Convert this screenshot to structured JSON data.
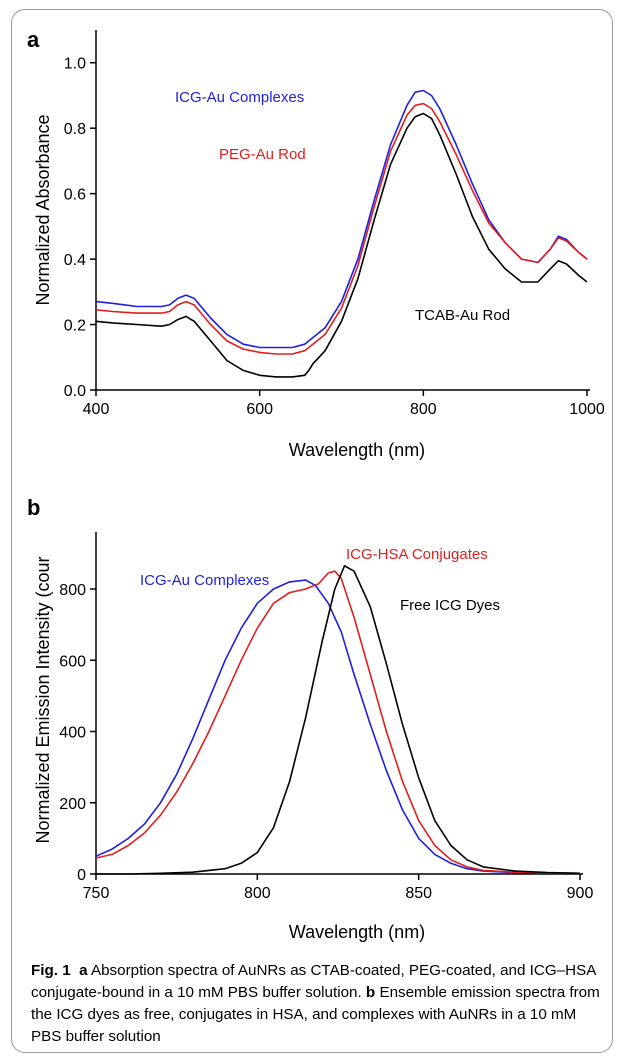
{
  "figure": {
    "panel_a_letter": "a",
    "panel_b_letter": "b",
    "caption_label": "Fig. 1",
    "caption_letter_a": "a",
    "caption_text_a": "Absorption spectra of AuNRs as CTAB-coated, PEG-coated, and ICG–HSA conjugate-bound in a 10 mM PBS buffer solution.",
    "caption_letter_b": "b",
    "caption_text_b": "Ensemble emission spectra from the ICG dyes as free, conjugates in HSA, and complexes with AuNRs in a 10 mM PBS buffer solution"
  },
  "chart_data": [
    {
      "type": "line",
      "xlabel": "Wavelength (nm)",
      "ylabel": "Normalized Absorbance",
      "xlim": [
        400,
        1000
      ],
      "ylim": [
        0,
        1.1
      ],
      "xticks": [
        400,
        600,
        800,
        1000
      ],
      "yticks": [
        0.0,
        0.2,
        0.4,
        0.6,
        0.8,
        1.0
      ],
      "xtick_labels": [
        "400",
        "600",
        "800",
        "1000"
      ],
      "ytick_labels": [
        "0.0",
        "0.2",
        "0.4",
        "0.6",
        "0.8",
        "1.0"
      ],
      "grid": false,
      "series": [
        {
          "name": "ICG-Au Complexes",
          "color": "#1f1fe0",
          "x": [
            400,
            420,
            450,
            480,
            490,
            500,
            510,
            520,
            540,
            560,
            580,
            600,
            620,
            640,
            655,
            660,
            665,
            680,
            700,
            720,
            740,
            760,
            780,
            790,
            800,
            810,
            820,
            840,
            860,
            880,
            900,
            920,
            940,
            955,
            965,
            975,
            990,
            1000
          ],
          "y": [
            0.27,
            0.265,
            0.255,
            0.255,
            0.26,
            0.28,
            0.29,
            0.28,
            0.22,
            0.17,
            0.14,
            0.13,
            0.13,
            0.13,
            0.14,
            0.15,
            0.16,
            0.19,
            0.27,
            0.4,
            0.58,
            0.75,
            0.87,
            0.91,
            0.915,
            0.9,
            0.86,
            0.75,
            0.63,
            0.52,
            0.45,
            0.4,
            0.39,
            0.43,
            0.47,
            0.46,
            0.42,
            0.4
          ]
        },
        {
          "name": "PEG-Au Rod",
          "color": "#e01f1f",
          "x": [
            400,
            420,
            450,
            480,
            490,
            500,
            510,
            520,
            540,
            560,
            580,
            600,
            620,
            640,
            655,
            660,
            665,
            680,
            700,
            720,
            740,
            760,
            780,
            790,
            800,
            810,
            820,
            840,
            860,
            880,
            900,
            920,
            940,
            955,
            965,
            975,
            990,
            1000
          ],
          "y": [
            0.245,
            0.24,
            0.235,
            0.235,
            0.24,
            0.26,
            0.27,
            0.26,
            0.2,
            0.15,
            0.125,
            0.115,
            0.11,
            0.11,
            0.12,
            0.13,
            0.14,
            0.17,
            0.25,
            0.38,
            0.56,
            0.73,
            0.84,
            0.87,
            0.875,
            0.86,
            0.82,
            0.72,
            0.61,
            0.51,
            0.45,
            0.4,
            0.39,
            0.43,
            0.465,
            0.455,
            0.42,
            0.4
          ]
        },
        {
          "name": "TCAB-Au Rod",
          "color": "#000000",
          "x": [
            400,
            420,
            450,
            480,
            490,
            500,
            510,
            520,
            540,
            560,
            580,
            600,
            620,
            640,
            655,
            660,
            665,
            680,
            700,
            720,
            740,
            760,
            780,
            790,
            800,
            810,
            820,
            840,
            860,
            880,
            900,
            920,
            940,
            955,
            965,
            975,
            990,
            1000
          ],
          "y": [
            0.21,
            0.205,
            0.2,
            0.195,
            0.2,
            0.215,
            0.225,
            0.21,
            0.15,
            0.09,
            0.06,
            0.045,
            0.04,
            0.04,
            0.045,
            0.06,
            0.08,
            0.12,
            0.21,
            0.34,
            0.52,
            0.69,
            0.8,
            0.835,
            0.845,
            0.83,
            0.78,
            0.66,
            0.53,
            0.43,
            0.37,
            0.33,
            0.33,
            0.37,
            0.395,
            0.385,
            0.35,
            0.33
          ]
        }
      ],
      "annotations": [
        "ICG-Au Complexes",
        "PEG-Au Rod",
        "TCAB-Au Rod"
      ]
    },
    {
      "type": "line",
      "xlabel": "Wavelength (nm)",
      "ylabel": "Normalized Emission Intensity (cour",
      "xlim": [
        750,
        900
      ],
      "ylim": [
        0,
        960
      ],
      "xticks": [
        750,
        800,
        850,
        900
      ],
      "yticks": [
        0,
        200,
        400,
        600,
        800
      ],
      "xtick_labels": [
        "750",
        "800",
        "850",
        "900"
      ],
      "ytick_labels": [
        "0",
        "200",
        "400",
        "600",
        "800"
      ],
      "grid": false,
      "series": [
        {
          "name": "ICG-Au Complexes",
          "color": "#1f1fe0",
          "x": [
            750,
            755,
            760,
            765,
            770,
            775,
            780,
            785,
            790,
            795,
            800,
            805,
            810,
            815,
            818,
            822,
            826,
            830,
            835,
            840,
            845,
            850,
            855,
            860,
            865,
            870,
            880,
            890,
            900
          ],
          "y": [
            50,
            70,
            100,
            140,
            200,
            280,
            380,
            490,
            600,
            690,
            760,
            800,
            820,
            825,
            810,
            760,
            680,
            560,
            420,
            290,
            180,
            100,
            55,
            30,
            15,
            8,
            4,
            3,
            2
          ]
        },
        {
          "name": "ICG-HSA Conjugates",
          "color": "#e01f1f",
          "x": [
            750,
            755,
            760,
            765,
            770,
            775,
            780,
            785,
            790,
            795,
            800,
            805,
            810,
            815,
            819,
            822,
            824,
            826,
            830,
            835,
            840,
            845,
            850,
            855,
            860,
            865,
            870,
            880,
            890,
            900
          ],
          "y": [
            45,
            55,
            80,
            115,
            165,
            230,
            310,
            400,
            500,
            600,
            690,
            760,
            790,
            800,
            815,
            845,
            850,
            830,
            720,
            560,
            400,
            260,
            150,
            80,
            40,
            20,
            10,
            5,
            3,
            2
          ]
        },
        {
          "name": "Free ICG Dyes",
          "color": "#000000",
          "x": [
            750,
            760,
            770,
            780,
            790,
            795,
            800,
            805,
            810,
            815,
            820,
            824,
            827,
            830,
            835,
            840,
            845,
            850,
            855,
            860,
            865,
            870,
            880,
            890,
            900
          ],
          "y": [
            0,
            0,
            2,
            5,
            15,
            30,
            60,
            130,
            260,
            440,
            650,
            800,
            865,
            850,
            750,
            590,
            420,
            270,
            150,
            80,
            40,
            20,
            8,
            4,
            2
          ]
        }
      ],
      "annotations": [
        "ICG-Au Complexes",
        "ICG-HSA Conjugates",
        "Free ICG Dyes"
      ]
    }
  ]
}
